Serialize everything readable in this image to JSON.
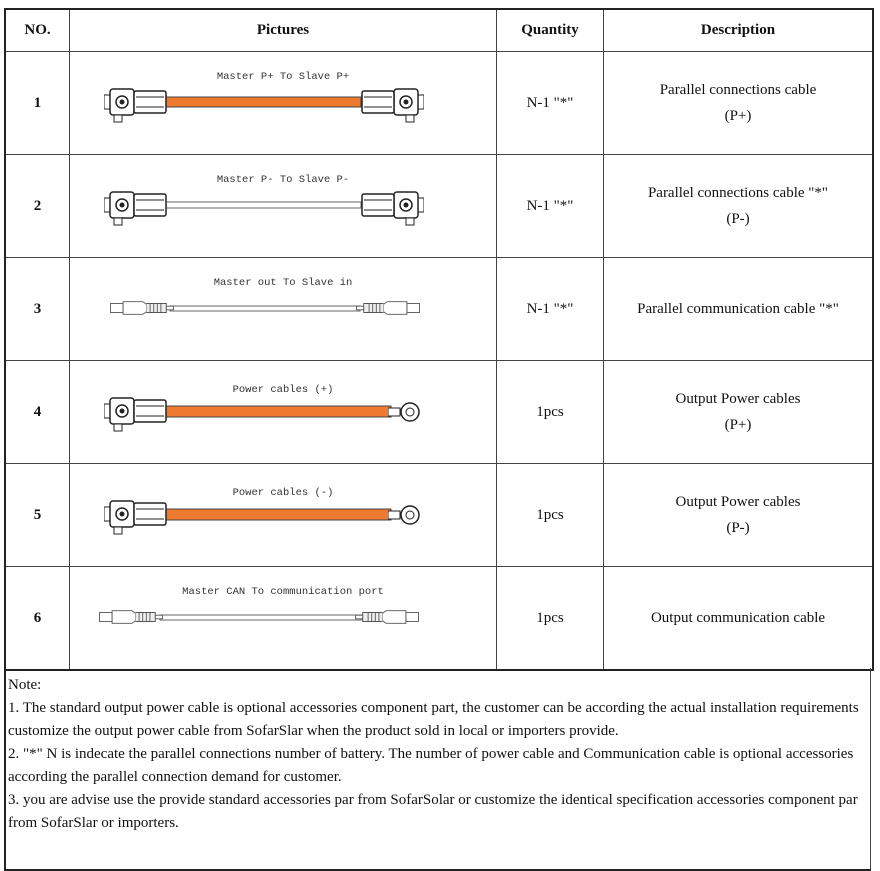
{
  "table": {
    "headers": [
      "NO.",
      "Pictures",
      "Quantity",
      "Description"
    ],
    "rows": [
      {
        "no": "1",
        "picture_label": "Master P+ To Slave P+",
        "quantity": "N-1 \"*\"",
        "description": [
          "Parallel connections cable",
          "(P+)"
        ]
      },
      {
        "no": "2",
        "picture_label": "Master P- To Slave P-",
        "quantity": "N-1 \"*\"",
        "description": [
          "Parallel connections cable \"*\"",
          "(P-)"
        ]
      },
      {
        "no": "3",
        "picture_label": "Master out To Slave in",
        "quantity": "N-1 \"*\"",
        "description": [
          "Parallel communication cable \"*\""
        ]
      },
      {
        "no": "4",
        "picture_label": "Power cables (+)",
        "quantity": "1pcs",
        "description": [
          "Output Power cables",
          "(P+)"
        ]
      },
      {
        "no": "5",
        "picture_label": "Power cables (-)",
        "quantity": "1pcs",
        "description": [
          "Output Power cables",
          "(P-)"
        ]
      },
      {
        "no": "6",
        "picture_label": "Master CAN To communication port",
        "quantity": "1pcs",
        "description": [
          "Output communication cable"
        ]
      }
    ]
  },
  "note": {
    "title": "Note:",
    "items": [
      "1. The standard output power cable is optional accessories component part, the customer can be according the actual installation requirements customize the output power cable from SofarSlar when the product sold in local or importers provide.",
      "2. \"*\" N is indecate the parallel connections number of battery. The number of power cable and Communication cable is optional accessories according the parallel connection demand for customer.",
      "3. you are advise use the provide standard accessories par from SofarSolar or customize the identical specification accessories component par from SofarSlar or importers."
    ]
  }
}
